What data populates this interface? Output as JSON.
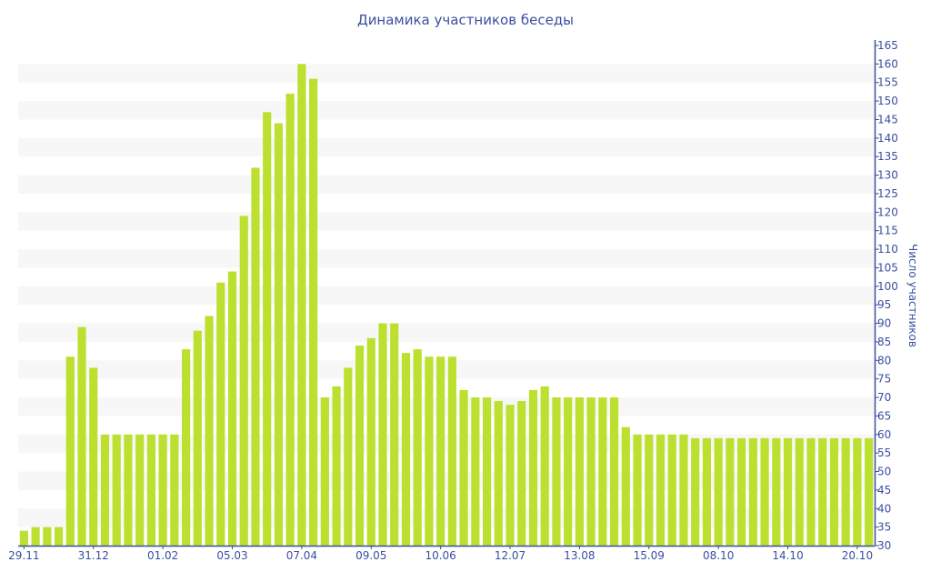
{
  "chart_data": {
    "type": "bar",
    "title": "Динамика участников беседы",
    "xlabel": "",
    "ylabel": "Число участников",
    "ylim": [
      30,
      165
    ],
    "ytick_step": 5,
    "y_axis_position": "right",
    "grid": "alternating horizontal bands",
    "bar_color": "#bbe02f",
    "axis_color": "#3a4fa0",
    "x_tick_labels": [
      "29.11",
      "31.12",
      "01.02",
      "05.03",
      "07.04",
      "09.05",
      "10.06",
      "12.07",
      "13.08",
      "15.09",
      "08.10",
      "14.10",
      "20.10"
    ],
    "x_tick_every": 6,
    "values": [
      34,
      35,
      35,
      35,
      81,
      89,
      78,
      60,
      60,
      60,
      60,
      60,
      60,
      60,
      83,
      88,
      92,
      101,
      104,
      119,
      132,
      147,
      144,
      152,
      160,
      156,
      70,
      73,
      78,
      84,
      86,
      90,
      90,
      82,
      83,
      81,
      81,
      81,
      72,
      70,
      70,
      69,
      68,
      69,
      72,
      73,
      70,
      70,
      70,
      70,
      70,
      70,
      62,
      60,
      60,
      60,
      60,
      60,
      59,
      59,
      59,
      59,
      59,
      59,
      59,
      59,
      59,
      59,
      59,
      59,
      59,
      59,
      59,
      59
    ]
  }
}
